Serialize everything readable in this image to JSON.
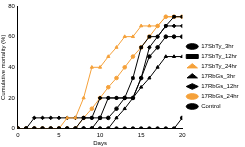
{
  "chart_data": {
    "type": "line",
    "x_label": "Days",
    "y_label": "Cumulative mortality (%)",
    "x": [
      0,
      1,
      2,
      3,
      4,
      5,
      6,
      7,
      8,
      9,
      10,
      11,
      12,
      13,
      14,
      15,
      16,
      17,
      18,
      19,
      20
    ],
    "xlim": [
      0,
      20
    ],
    "xticks": [
      0,
      5,
      10,
      15,
      20
    ],
    "ylim": [
      0,
      80
    ],
    "yticks": [
      0,
      20,
      40,
      60,
      80
    ],
    "grid": false,
    "legend": "right",
    "series": [
      {
        "name": "17SbTy_3hr",
        "color": "#000000",
        "marker": "circle",
        "values": [
          0,
          0,
          0,
          0,
          0,
          0,
          0,
          0,
          0,
          0,
          7,
          7,
          13,
          20,
          20,
          33,
          47,
          53,
          60,
          60,
          60
        ]
      },
      {
        "name": "17SbTy_12hr",
        "color": "#000000",
        "marker": "rect",
        "values": [
          0,
          0,
          0,
          0,
          0,
          0,
          0,
          0,
          7,
          7,
          7,
          20,
          20,
          20,
          33,
          53,
          60,
          60,
          67,
          73,
          73
        ]
      },
      {
        "name": "17SbTy_24hr",
        "color": "#f5a13a",
        "marker": "triangle",
        "values": [
          0,
          0,
          0,
          0,
          0,
          0,
          7,
          7,
          20,
          40,
          40,
          47,
          53,
          60,
          60,
          67,
          67,
          67,
          73,
          73,
          73
        ]
      },
      {
        "name": "17RbGs_3hr",
        "color": "#000000",
        "marker": "triangle",
        "values": [
          0,
          0,
          0,
          0,
          0,
          0,
          0,
          0,
          0,
          0,
          0,
          0,
          7,
          13,
          20,
          27,
          33,
          40,
          47,
          47,
          47
        ]
      },
      {
        "name": "17RbGs_12hr",
        "color": "#000000",
        "marker": "rectRot",
        "values": [
          0,
          0,
          7,
          7,
          7,
          7,
          7,
          7,
          7,
          7,
          20,
          20,
          20,
          20,
          20,
          33,
          53,
          60,
          67,
          67,
          67
        ]
      },
      {
        "name": "17RbGs_24hr",
        "color": "#f5a13a",
        "marker": "circle",
        "values": [
          0,
          0,
          0,
          0,
          0,
          0,
          0,
          0,
          7,
          13,
          20,
          27,
          33,
          40,
          47,
          53,
          60,
          67,
          73,
          73,
          73
        ]
      },
      {
        "name": "Control",
        "color": "#000000",
        "marker": "circle",
        "values": [
          0,
          0,
          0,
          0,
          0,
          0,
          0,
          0,
          0,
          0,
          0,
          0,
          0,
          0,
          0,
          0,
          0,
          0,
          0,
          0,
          7
        ]
      }
    ]
  }
}
